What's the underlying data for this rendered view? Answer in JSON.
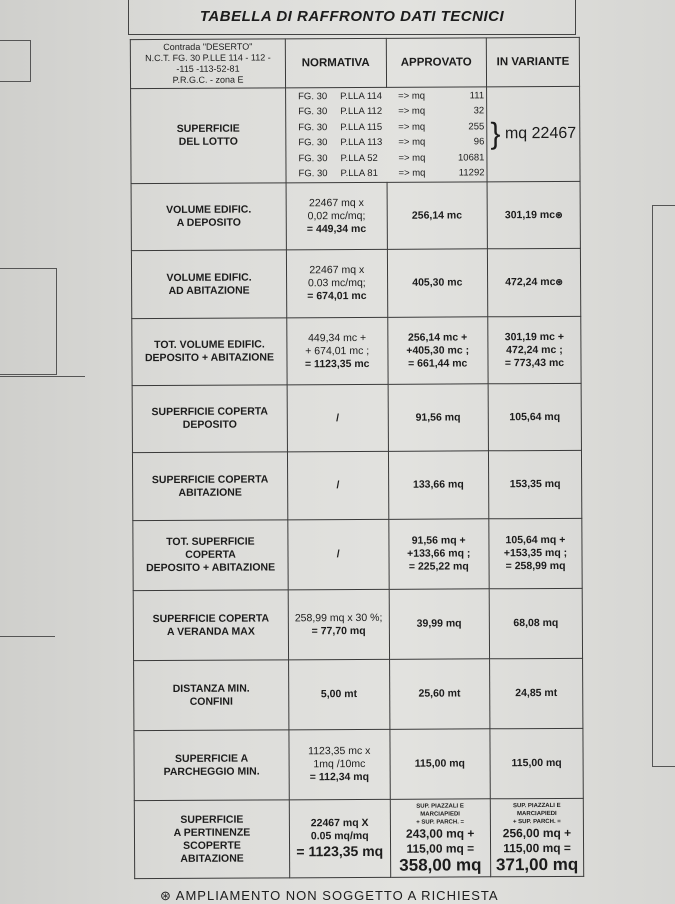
{
  "title": "TABELLA DI RAFFRONTO DATI TECNICI",
  "header": {
    "location": [
      "Contrada \"DESERTO\"",
      "N.C.T. FG. 30  P.LLE 114 - 112 -",
      "-115 -113-52-81",
      "P.R.G.C. - zona E"
    ],
    "columns": [
      "NORMATIVA",
      "APPROVATO",
      "IN VARIANTE"
    ]
  },
  "lotto": {
    "label": [
      "SUPERFICIE",
      "DEL LOTTO"
    ],
    "parcels": [
      {
        "fg": "FG. 30",
        "plla": "P.LLA 114",
        "mq": "=> mq",
        "value": "111"
      },
      {
        "fg": "FG. 30",
        "plla": "P.LLA 112",
        "mq": "=> mq",
        "value": "32"
      },
      {
        "fg": "FG. 30",
        "plla": "P.LLA 115",
        "mq": "=> mq",
        "value": "255"
      },
      {
        "fg": "FG. 30",
        "plla": "P.LLA 113",
        "mq": "=> mq",
        "value": "96"
      },
      {
        "fg": "FG. 30",
        "plla": "P.LLA 52",
        "mq": "=> mq",
        "value": "10681"
      },
      {
        "fg": "FG. 30",
        "plla": "P.LLA 81",
        "mq": "=> mq",
        "value": "11292"
      }
    ],
    "total": "mq 22467"
  },
  "rows": [
    {
      "label": [
        "VOLUME EDIFIC.",
        "A DEPOSITO"
      ],
      "normativa": [
        "22467 mq x",
        "0,02 mc/mq;",
        "= 449,34 mc"
      ],
      "approvato": [
        "256,14 mc"
      ],
      "variante": [
        "301,19 mc"
      ],
      "star": "⊛"
    },
    {
      "label": [
        "VOLUME EDIFIC.",
        "AD ABITAZIONE"
      ],
      "normativa": [
        "22467 mq x",
        "0.03 mc/mq;",
        "= 674,01 mc"
      ],
      "approvato": [
        "405,30 mc"
      ],
      "variante": [
        "472,24 mc"
      ],
      "star": "⊛"
    },
    {
      "label": [
        "TOT. VOLUME EDIFIC.",
        "DEPOSITO + ABITAZIONE"
      ],
      "normativa": [
        "449,34 mc +",
        "+ 674,01 mc ;",
        "= 1123,35 mc"
      ],
      "approvato": [
        "256,14 mc +",
        "+405,30 mc ;",
        "= 661,44 mc"
      ],
      "variante": [
        "301,19 mc +",
        "472,24 mc ;",
        "= 773,43 mc"
      ]
    },
    {
      "label": [
        "SUPERFICIE COPERTA",
        "DEPOSITO"
      ],
      "normativa": [
        "/"
      ],
      "approvato": [
        "91,56 mq"
      ],
      "variante": [
        "105,64 mq"
      ]
    },
    {
      "label": [
        "SUPERFICIE COPERTA",
        "ABITAZIONE"
      ],
      "normativa": [
        "/"
      ],
      "approvato": [
        "133,66 mq"
      ],
      "variante": [
        "153,35 mq"
      ]
    },
    {
      "label": [
        "TOT. SUPERFICIE",
        "COPERTA",
        "DEPOSITO + ABITAZIONE"
      ],
      "normativa": [
        "/"
      ],
      "approvato": [
        "91,56 mq +",
        "+133,66 mq ;",
        "= 225,22 mq"
      ],
      "variante": [
        "105,64 mq +",
        "+153,35 mq ;",
        "= 258,99 mq"
      ]
    },
    {
      "label": [
        "SUPERFICIE COPERTA",
        "A VERANDA MAX"
      ],
      "normativa": [
        "258,99 mq x 30 %;",
        "= 77,70 mq"
      ],
      "approvato": [
        "39,99 mq"
      ],
      "variante": [
        "68,08 mq"
      ]
    },
    {
      "label": [
        "DISTANZA MIN.",
        "CONFINI"
      ],
      "normativa": [
        "5,00 mt"
      ],
      "approvato": [
        "25,60 mt"
      ],
      "variante": [
        "24,85 mt"
      ]
    },
    {
      "label": [
        "SUPERFICIE A",
        "PARCHEGGIO MIN."
      ],
      "normativa": [
        "1123,35 mc x",
        "1mq /10mc",
        "= 112,34 mq"
      ],
      "approvato": [
        "115,00 mq"
      ],
      "variante": [
        "115,00 mq"
      ]
    }
  ],
  "pertinenze": {
    "label": [
      "SUPERFICIE",
      "A PERTINENZE",
      "SCOPERTE",
      "ABITAZIONE"
    ],
    "normativa": [
      "22467 mq X",
      "0.05 mq/mq",
      "= 1123,35 mq"
    ],
    "approvato": {
      "note": [
        "SUP. PIAZZALI E",
        "MARCIAPIEDI",
        "+ SUP. PARCH. ="
      ],
      "lines": [
        "243,00 mq +",
        "115,00 mq ="
      ],
      "total": "358,00 mq"
    },
    "variante": {
      "note": [
        "SUP. PIAZZALI E",
        "MARCIAPIEDI",
        "+ SUP. PARCH. ="
      ],
      "lines": [
        "256,00 mq +",
        "115,00 mq ="
      ],
      "total": "371,00 mq"
    }
  },
  "footer": "⊛ AMPLIAMENTO NON SOGGETTO A RICHIESTA"
}
